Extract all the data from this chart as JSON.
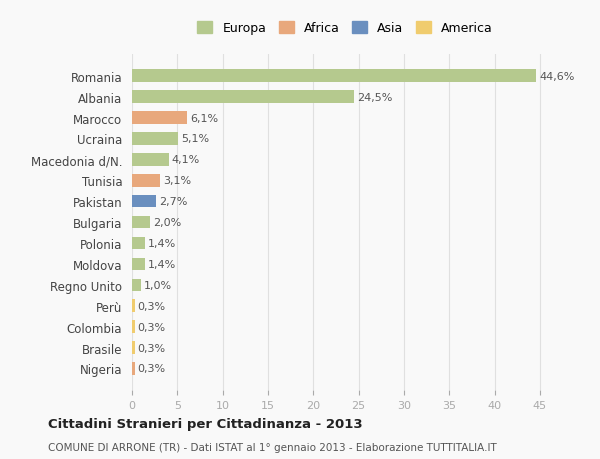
{
  "categories": [
    "Romania",
    "Albania",
    "Marocco",
    "Ucraina",
    "Macedonia d/N.",
    "Tunisia",
    "Pakistan",
    "Bulgaria",
    "Polonia",
    "Moldova",
    "Regno Unito",
    "Perù",
    "Colombia",
    "Brasile",
    "Nigeria"
  ],
  "values": [
    44.6,
    24.5,
    6.1,
    5.1,
    4.1,
    3.1,
    2.7,
    2.0,
    1.4,
    1.4,
    1.0,
    0.3,
    0.3,
    0.3,
    0.3
  ],
  "labels": [
    "44,6%",
    "24,5%",
    "6,1%",
    "5,1%",
    "4,1%",
    "3,1%",
    "2,7%",
    "2,0%",
    "1,4%",
    "1,4%",
    "1,0%",
    "0,3%",
    "0,3%",
    "0,3%",
    "0,3%"
  ],
  "continent": [
    "Europa",
    "Europa",
    "Africa",
    "Europa",
    "Europa",
    "Africa",
    "Asia",
    "Europa",
    "Europa",
    "Europa",
    "Europa",
    "America",
    "America",
    "America",
    "Africa"
  ],
  "colors": {
    "Europa": "#b5c98e",
    "Africa": "#e8a87c",
    "Asia": "#6a8fbf",
    "America": "#f0cc6e"
  },
  "legend_colors": {
    "Europa": "#b5c98e",
    "Africa": "#e8a87c",
    "Asia": "#6a8fbf",
    "America": "#f0cc6e"
  },
  "title": "Cittadini Stranieri per Cittadinanza - 2013",
  "subtitle": "COMUNE DI ARRONE (TR) - Dati ISTAT al 1° gennaio 2013 - Elaborazione TUTTITALIA.IT",
  "xlim": [
    0,
    47
  ],
  "xticks": [
    0,
    5,
    10,
    15,
    20,
    25,
    30,
    35,
    40,
    45
  ],
  "background_color": "#f9f9f9",
  "grid_color": "#e0e0e0"
}
